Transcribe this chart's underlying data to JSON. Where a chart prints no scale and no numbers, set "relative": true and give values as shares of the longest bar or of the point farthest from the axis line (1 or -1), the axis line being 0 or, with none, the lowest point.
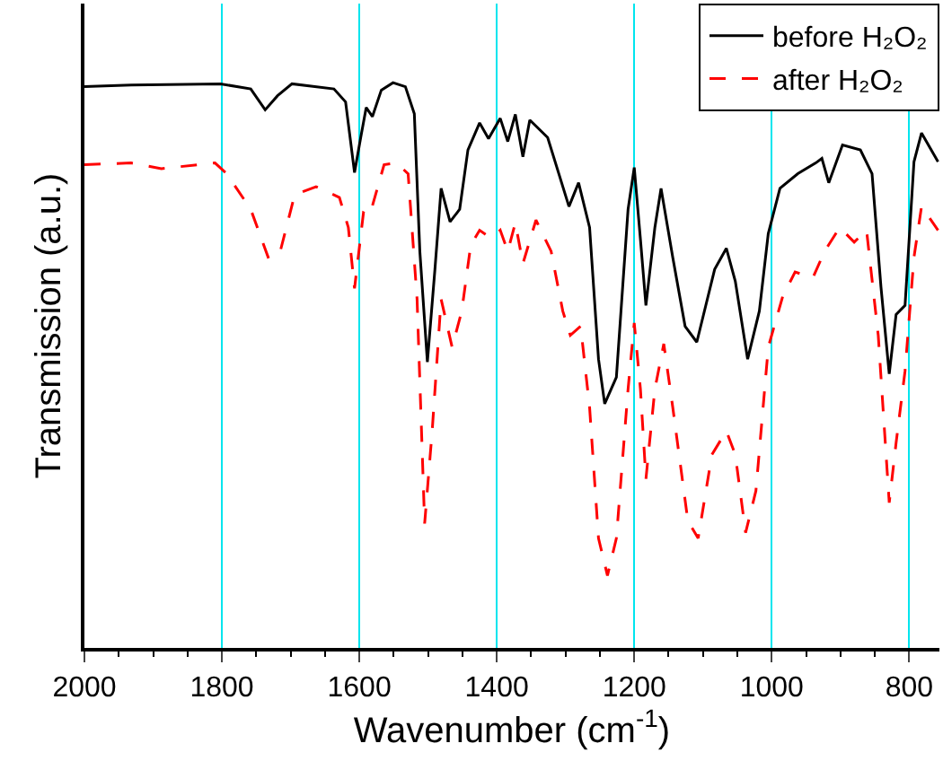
{
  "chart_data": {
    "type": "line",
    "xlabel": "Wavenumber (cm$^{-1}$)",
    "ylabel": "Transmission (a.u.)",
    "relative": true,
    "xlim": [
      2000,
      756
    ],
    "xticks": [
      2000,
      1800,
      1600,
      1400,
      1200,
      1000,
      800
    ],
    "grid": "x",
    "legend": "top right",
    "tick_labels": "x",
    "series": [
      {
        "name": "before H₂O₂",
        "color": "#000000",
        "line_style": "solid",
        "x": [
          2000,
          1932,
          1802,
          1758,
          1737,
          1719,
          1698,
          1637,
          1620,
          1607,
          1598,
          1590,
          1581,
          1568,
          1551,
          1533,
          1520,
          1512,
          1501,
          1490,
          1481,
          1468,
          1454,
          1442,
          1425,
          1412,
          1395,
          1384,
          1373,
          1362,
          1352,
          1326,
          1295,
          1281,
          1265,
          1252,
          1243,
          1226,
          1209,
          1200,
          1191,
          1183,
          1170,
          1161,
          1144,
          1126,
          1109,
          1083,
          1066,
          1053,
          1035,
          1018,
          1005,
          988,
          962,
          936,
          927,
          917,
          897,
          871,
          854,
          841,
          829,
          819,
          806,
          793,
          782,
          758
        ],
        "values": [
          0.993,
          0.996,
          0.998,
          0.989,
          0.952,
          0.977,
          0.998,
          0.989,
          0.966,
          0.841,
          0.903,
          0.956,
          0.94,
          0.987,
          1.0,
          0.993,
          0.945,
          0.702,
          0.506,
          0.67,
          0.813,
          0.754,
          0.776,
          0.881,
          0.929,
          0.901,
          0.937,
          0.896,
          0.944,
          0.869,
          0.934,
          0.903,
          0.781,
          0.823,
          0.744,
          0.511,
          0.432,
          0.479,
          0.776,
          0.85,
          0.723,
          0.606,
          0.744,
          0.813,
          0.691,
          0.569,
          0.541,
          0.67,
          0.707,
          0.649,
          0.511,
          0.596,
          0.733,
          0.813,
          0.839,
          0.858,
          0.866,
          0.823,
          0.89,
          0.881,
          0.839,
          0.638,
          0.485,
          0.59,
          0.606,
          0.86,
          0.911,
          0.86
        ]
      },
      {
        "name": "after H₂O₂",
        "color": "#ff0000",
        "line_style": "dashed",
        "x": [
          2000,
          1932,
          1888,
          1810,
          1793,
          1758,
          1732,
          1715,
          1694,
          1663,
          1629,
          1616,
          1607,
          1594,
          1585,
          1564,
          1546,
          1529,
          1516,
          1505,
          1494,
          1481,
          1465,
          1451,
          1438,
          1425,
          1412,
          1404,
          1395,
          1384,
          1373,
          1362,
          1343,
          1321,
          1304,
          1293,
          1278,
          1265,
          1252,
          1239,
          1226,
          1209,
          1200,
          1191,
          1183,
          1170,
          1157,
          1144,
          1122,
          1107,
          1087,
          1066,
          1053,
          1038,
          1023,
          1005,
          984,
          966,
          940,
          923,
          901,
          880,
          862,
          845,
          829,
          819,
          806,
          793,
          782,
          758
        ],
        "values": [
          0.855,
          0.858,
          0.848,
          0.858,
          0.839,
          0.776,
          0.689,
          0.702,
          0.802,
          0.816,
          0.797,
          0.744,
          0.636,
          0.77,
          0.765,
          0.855,
          0.858,
          0.839,
          0.617,
          0.22,
          0.384,
          0.617,
          0.532,
          0.596,
          0.712,
          0.739,
          0.728,
          0.728,
          0.739,
          0.702,
          0.752,
          0.68,
          0.757,
          0.702,
          0.596,
          0.553,
          0.569,
          0.426,
          0.194,
          0.128,
          0.194,
          0.458,
          0.575,
          0.458,
          0.299,
          0.458,
          0.538,
          0.426,
          0.225,
          0.194,
          0.342,
          0.384,
          0.342,
          0.204,
          0.278,
          0.532,
          0.622,
          0.665,
          0.655,
          0.702,
          0.744,
          0.718,
          0.739,
          0.553,
          0.257,
          0.363,
          0.49,
          0.691,
          0.781,
          0.739
        ]
      }
    ]
  }
}
